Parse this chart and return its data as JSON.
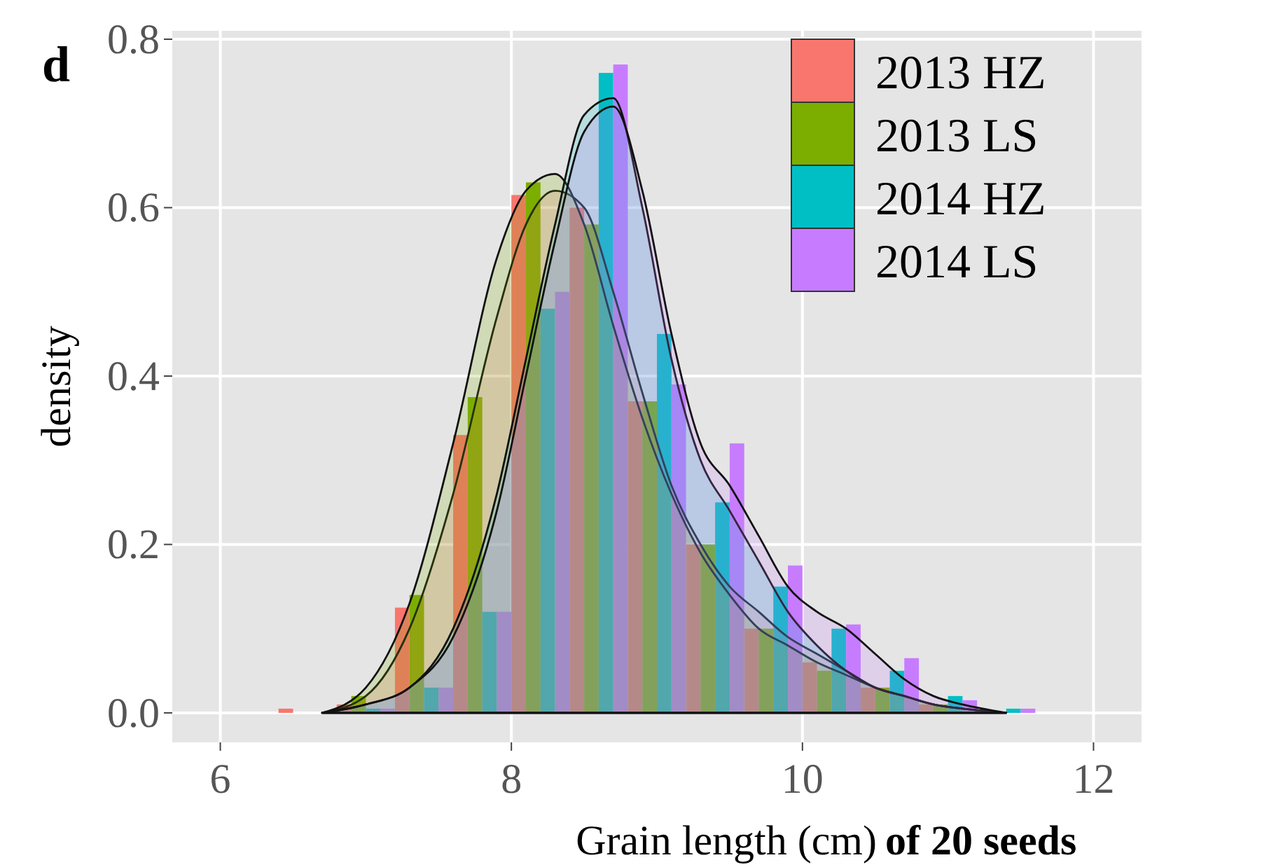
{
  "chart_data": {
    "type": "histogram",
    "title": "d",
    "xlabel": "Grain length (cm)",
    "ylabel": "density",
    "annotations": [
      "of 20 seeds"
    ],
    "bins": [
      6.4,
      6.8,
      7.2,
      7.6,
      8.0,
      8.4,
      8.8,
      9.2,
      9.6,
      10.0,
      10.4,
      10.8,
      11.2,
      11.6
    ],
    "series": [
      {
        "name": "2013 HZ",
        "color": "#f8766d",
        "values": [
          0.005,
          0.01,
          0.125,
          0.33,
          0.615,
          0.6,
          0.37,
          0.2,
          0.1,
          0.06,
          0.03,
          0.01,
          0
        ]
      },
      {
        "name": "2013 LS",
        "color": "#7cae00",
        "values": [
          0,
          0.02,
          0.14,
          0.375,
          0.63,
          0.58,
          0.37,
          0.2,
          0.1,
          0.05,
          0.03,
          0.01,
          0
        ]
      },
      {
        "name": "2014 HZ",
        "color": "#00bfc4",
        "values": [
          0,
          0.005,
          0.03,
          0.12,
          0.48,
          0.76,
          0.45,
          0.25,
          0.15,
          0.1,
          0.05,
          0.02,
          0.005
        ]
      },
      {
        "name": "2014 LS",
        "color": "#c77cff",
        "values": [
          0,
          0.005,
          0.03,
          0.12,
          0.5,
          0.77,
          0.39,
          0.32,
          0.175,
          0.105,
          0.065,
          0.015,
          0.005
        ]
      },
      {
        "type": "area",
        "color": "#f8766d",
        "x": [
          6.7,
          7.0,
          7.3,
          7.6,
          7.9,
          8.1,
          8.3,
          8.5,
          8.7,
          8.9,
          9.1,
          9.3,
          9.5,
          9.7,
          9.9,
          10.1,
          10.3,
          10.5,
          10.7,
          10.9,
          11.1,
          11.4
        ],
        "values": [
          0,
          0.02,
          0.1,
          0.26,
          0.47,
          0.58,
          0.62,
          0.6,
          0.5,
          0.38,
          0.27,
          0.2,
          0.15,
          0.12,
          0.09,
          0.07,
          0.05,
          0.03,
          0.02,
          0.01,
          0.005,
          0
        ]
      },
      {
        "type": "area",
        "color": "#7cae00",
        "x": [
          6.7,
          7.0,
          7.3,
          7.6,
          7.9,
          8.1,
          8.3,
          8.5,
          8.7,
          8.9,
          9.1,
          9.3,
          9.5,
          9.7,
          9.9,
          10.1,
          10.3,
          10.5,
          10.7,
          10.9,
          11.1,
          11.4
        ],
        "values": [
          0,
          0.03,
          0.13,
          0.32,
          0.54,
          0.62,
          0.64,
          0.58,
          0.46,
          0.35,
          0.26,
          0.19,
          0.14,
          0.1,
          0.08,
          0.06,
          0.045,
          0.03,
          0.02,
          0.01,
          0.005,
          0
        ]
      },
      {
        "type": "area",
        "color": "#00bfc4",
        "x": [
          6.7,
          7.0,
          7.3,
          7.6,
          7.9,
          8.1,
          8.3,
          8.5,
          8.7,
          8.9,
          9.1,
          9.3,
          9.5,
          9.7,
          9.9,
          10.1,
          10.3,
          10.5,
          10.7,
          10.9,
          11.1,
          11.4
        ],
        "values": [
          0,
          0.01,
          0.03,
          0.1,
          0.26,
          0.42,
          0.58,
          0.71,
          0.73,
          0.6,
          0.42,
          0.3,
          0.24,
          0.18,
          0.12,
          0.08,
          0.05,
          0.03,
          0.02,
          0.01,
          0.005,
          0
        ]
      },
      {
        "type": "area",
        "color": "#c77cff",
        "x": [
          6.7,
          7.0,
          7.3,
          7.6,
          7.9,
          8.1,
          8.3,
          8.5,
          8.7,
          8.9,
          9.1,
          9.3,
          9.5,
          9.7,
          9.9,
          10.1,
          10.3,
          10.5,
          10.7,
          10.9,
          11.1,
          11.4
        ],
        "values": [
          0,
          0.01,
          0.03,
          0.09,
          0.24,
          0.4,
          0.56,
          0.69,
          0.72,
          0.62,
          0.45,
          0.32,
          0.27,
          0.21,
          0.15,
          0.12,
          0.1,
          0.07,
          0.04,
          0.02,
          0.01,
          0
        ]
      }
    ],
    "xlim": [
      5.67,
      12.33
    ],
    "ylim": [
      -0.035,
      0.81
    ],
    "xticks": [
      6,
      8,
      10,
      12
    ],
    "yticks": [
      {
        "value": 0,
        "label": "0.0"
      },
      {
        "value": 0.2,
        "label": "0.2"
      },
      {
        "value": 0.4,
        "label": "0.4"
      },
      {
        "value": 0.6,
        "label": "0.6"
      },
      {
        "value": 0.8,
        "label": "0.8"
      }
    ],
    "grid": true,
    "legend": "top right"
  }
}
